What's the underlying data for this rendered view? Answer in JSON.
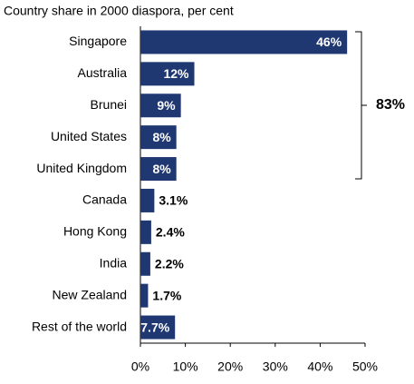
{
  "chart_data": {
    "type": "hbar",
    "title": "Country share in 2000 diaspora, per cent",
    "categories": [
      "Singapore",
      "Australia",
      "Brunei",
      "United States",
      "United Kingdom",
      "Canada",
      "Hong Kong",
      "India",
      "New Zealand",
      "Rest of the world"
    ],
    "values": [
      46,
      12,
      9,
      8,
      8,
      3.1,
      2.4,
      2.2,
      1.7,
      7.7
    ],
    "value_labels": [
      "46%",
      "12%",
      "9%",
      "8%",
      "8%",
      "3.1%",
      "2.4%",
      "2.2%",
      "1.7%",
      "7.7%"
    ],
    "color": "#1f3872",
    "xlim": [
      0,
      50
    ],
    "xticks": [
      {
        "value": 0,
        "label": "0%"
      },
      {
        "value": 10,
        "label": "10%"
      },
      {
        "value": 20,
        "label": "20%"
      },
      {
        "value": 30,
        "label": "30%"
      },
      {
        "value": 40,
        "label": "40%"
      },
      {
        "value": 50,
        "label": "50%"
      }
    ],
    "annotation": "83%"
  }
}
